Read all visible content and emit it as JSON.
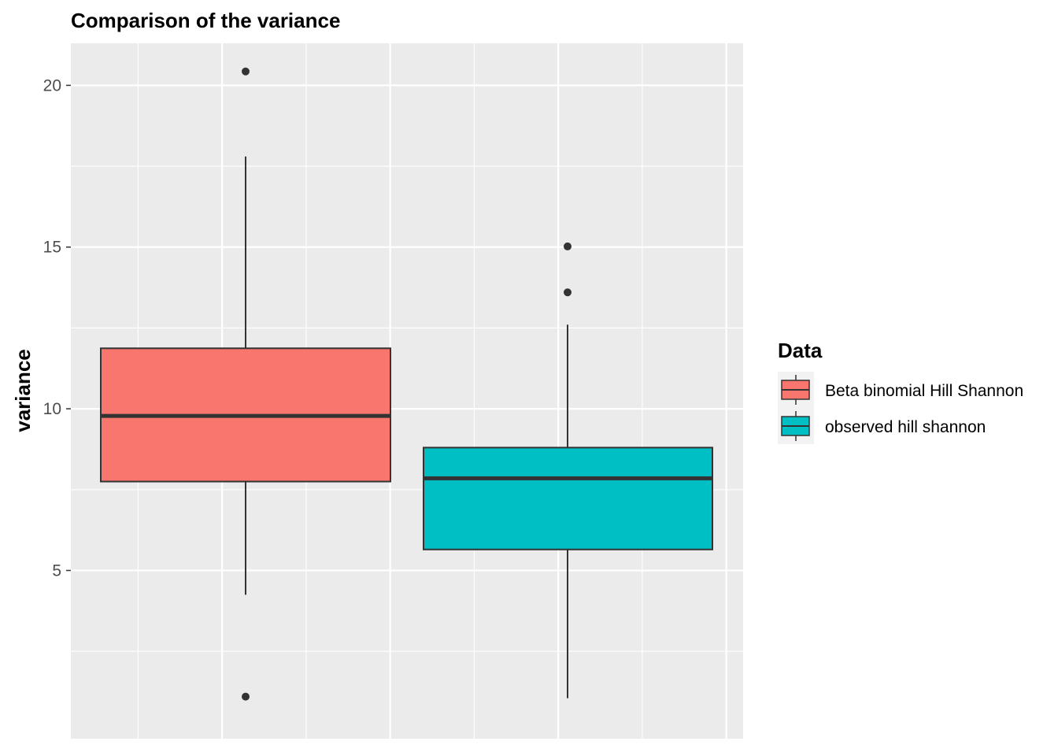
{
  "chart_data": {
    "type": "boxplot",
    "title": "Comparison of the variance",
    "ylabel": "variance",
    "xlabel": "",
    "ylim": [
      -0.2,
      21.3
    ],
    "yticks": [
      5,
      10,
      15,
      20
    ],
    "grid": true,
    "legend": {
      "title": "Data",
      "position": "right"
    },
    "series": [
      {
        "name": "Beta binomial Hill Shannon",
        "color": "#F8766D",
        "q1": 7.75,
        "median": 9.78,
        "q3": 11.87,
        "whisker_low": 4.25,
        "whisker_high": 17.8,
        "outliers": [
          20.43,
          1.1
        ]
      },
      {
        "name": "observed hill shannon",
        "color": "#00BFC4",
        "q1": 5.65,
        "median": 7.85,
        "q3": 8.8,
        "whisker_low": 1.05,
        "whisker_high": 12.6,
        "outliers": [
          15.02,
          13.6
        ]
      }
    ],
    "colors": {
      "panel": "#EBEBEB",
      "grid": "#FFFFFF",
      "box_outline": "#333333"
    }
  }
}
